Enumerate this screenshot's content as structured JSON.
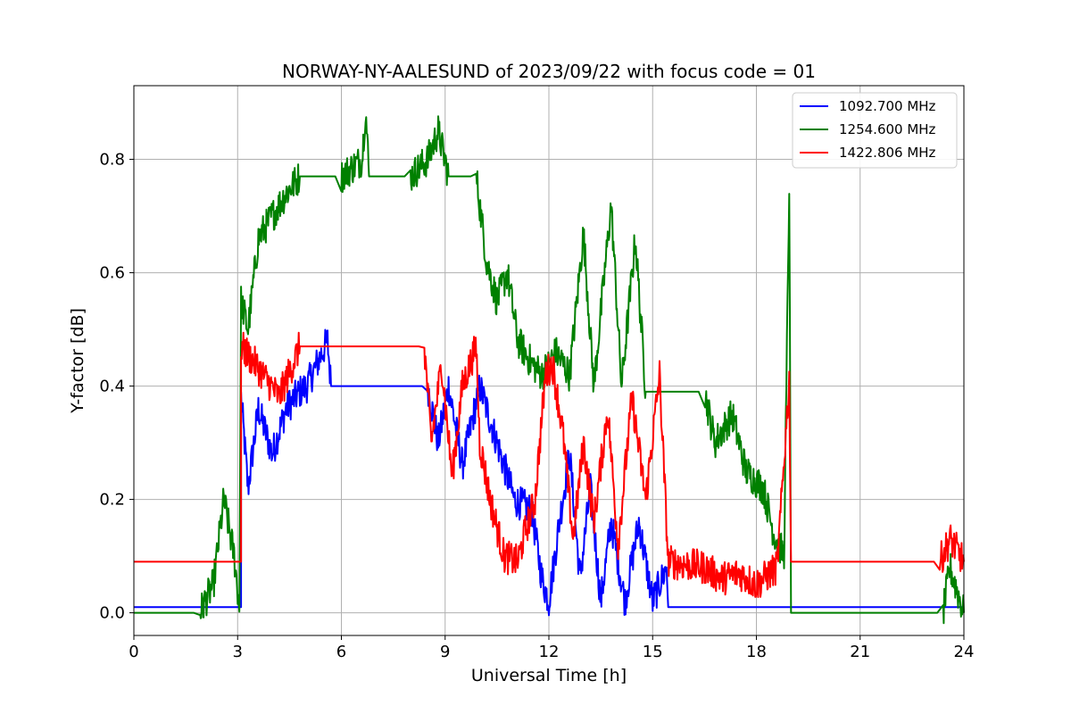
{
  "chart_data": {
    "type": "line",
    "title": "NORWAY-NY-AALESUND of 2023/09/22 with focus code = 01",
    "xlabel": "Universal Time [h]",
    "ylabel": "Y-factor [dB]",
    "xlim": [
      0,
      24
    ],
    "ylim": [
      -0.04,
      0.93
    ],
    "xticks": [
      0,
      3,
      6,
      9,
      12,
      15,
      18,
      21,
      24
    ],
    "yticks": [
      0.0,
      0.2,
      0.4,
      0.6,
      0.8
    ],
    "xtick_labels": [
      "0",
      "3",
      "6",
      "9",
      "12",
      "15",
      "18",
      "21",
      "24"
    ],
    "ytick_labels": [
      "0.0",
      "0.2",
      "0.4",
      "0.6",
      "0.8"
    ],
    "grid": true,
    "legend_position": "top-right",
    "colors": {
      "1092.700 MHz": "#0000ff",
      "1254.600 MHz": "#008000",
      "1422.806 MHz": "#ff0000"
    },
    "series": [
      {
        "name": "1092.700 MHz",
        "color": "#0000ff",
        "points": [
          [
            0,
            0.01
          ],
          [
            3.1,
            0.01
          ],
          [
            3.1,
            0.38
          ],
          [
            3.3,
            0.22
          ],
          [
            3.6,
            0.36
          ],
          [
            4.0,
            0.28
          ],
          [
            4.4,
            0.36
          ],
          [
            4.8,
            0.39
          ],
          [
            5.0,
            0.4
          ],
          [
            5.6,
            0.48
          ],
          [
            5.7,
            0.4
          ],
          [
            8.5,
            0.4
          ],
          [
            8.8,
            0.3
          ],
          [
            9.1,
            0.4
          ],
          [
            9.5,
            0.26
          ],
          [
            10.0,
            0.4
          ],
          [
            10.5,
            0.3
          ],
          [
            11.0,
            0.2
          ],
          [
            11.5,
            0.18
          ],
          [
            11.8,
            0.06
          ],
          [
            12.0,
            0.02
          ],
          [
            12.3,
            0.16
          ],
          [
            12.6,
            0.28
          ],
          [
            12.9,
            0.06
          ],
          [
            13.2,
            0.22
          ],
          [
            13.5,
            0.02
          ],
          [
            13.8,
            0.16
          ],
          [
            14.2,
            0.02
          ],
          [
            14.6,
            0.16
          ],
          [
            15.0,
            0.02
          ],
          [
            15.4,
            0.08
          ],
          [
            15.45,
            0.01
          ],
          [
            24,
            0.01
          ]
        ]
      },
      {
        "name": "1254.600 MHz",
        "color": "#008000",
        "points": [
          [
            0,
            0.0
          ],
          [
            1.9,
            0.0
          ],
          [
            2.3,
            0.05
          ],
          [
            2.6,
            0.2
          ],
          [
            2.9,
            0.1
          ],
          [
            3.05,
            0.01
          ],
          [
            3.1,
            0.55
          ],
          [
            3.3,
            0.5
          ],
          [
            3.6,
            0.66
          ],
          [
            4.0,
            0.7
          ],
          [
            4.4,
            0.74
          ],
          [
            4.8,
            0.77
          ],
          [
            5.3,
            0.77
          ],
          [
            6.0,
            0.77
          ],
          [
            6.6,
            0.8
          ],
          [
            6.7,
            0.89
          ],
          [
            6.8,
            0.77
          ],
          [
            8.0,
            0.77
          ],
          [
            8.5,
            0.8
          ],
          [
            8.8,
            0.85
          ],
          [
            9.1,
            0.77
          ],
          [
            9.9,
            0.77
          ],
          [
            10.2,
            0.62
          ],
          [
            10.5,
            0.55
          ],
          [
            10.8,
            0.6
          ],
          [
            11.1,
            0.48
          ],
          [
            11.5,
            0.44
          ],
          [
            11.8,
            0.42
          ],
          [
            12.2,
            0.46
          ],
          [
            12.6,
            0.42
          ],
          [
            13.0,
            0.67
          ],
          [
            13.3,
            0.4
          ],
          [
            13.8,
            0.72
          ],
          [
            14.1,
            0.4
          ],
          [
            14.5,
            0.66
          ],
          [
            14.8,
            0.39
          ],
          [
            16.5,
            0.39
          ],
          [
            16.8,
            0.3
          ],
          [
            17.3,
            0.35
          ],
          [
            17.7,
            0.25
          ],
          [
            18.2,
            0.22
          ],
          [
            18.5,
            0.14
          ],
          [
            18.8,
            0.1
          ],
          [
            18.95,
            0.76
          ],
          [
            19.0,
            0.0
          ],
          [
            23.4,
            0.0
          ],
          [
            23.6,
            0.08
          ],
          [
            24,
            0.0
          ]
        ]
      },
      {
        "name": "1422.806 MHz",
        "color": "#ff0000",
        "points": [
          [
            0,
            0.09
          ],
          [
            3.1,
            0.09
          ],
          [
            3.1,
            0.47
          ],
          [
            3.5,
            0.44
          ],
          [
            4.2,
            0.38
          ],
          [
            4.8,
            0.47
          ],
          [
            8.4,
            0.47
          ],
          [
            8.6,
            0.3
          ],
          [
            8.9,
            0.44
          ],
          [
            9.2,
            0.24
          ],
          [
            9.5,
            0.4
          ],
          [
            9.9,
            0.47
          ],
          [
            10.0,
            0.3
          ],
          [
            10.3,
            0.2
          ],
          [
            10.7,
            0.1
          ],
          [
            11.1,
            0.09
          ],
          [
            11.3,
            0.14
          ],
          [
            11.6,
            0.2
          ],
          [
            11.9,
            0.42
          ],
          [
            12.1,
            0.44
          ],
          [
            12.4,
            0.32
          ],
          [
            12.7,
            0.13
          ],
          [
            13.0,
            0.3
          ],
          [
            13.3,
            0.16
          ],
          [
            13.7,
            0.36
          ],
          [
            14.0,
            0.12
          ],
          [
            14.4,
            0.38
          ],
          [
            14.8,
            0.2
          ],
          [
            15.2,
            0.42
          ],
          [
            15.45,
            0.09
          ],
          [
            16.5,
            0.08
          ],
          [
            17.0,
            0.06
          ],
          [
            17.5,
            0.07
          ],
          [
            18.0,
            0.05
          ],
          [
            18.6,
            0.08
          ],
          [
            18.95,
            0.41
          ],
          [
            19.0,
            0.09
          ],
          [
            23.3,
            0.09
          ],
          [
            23.6,
            0.13
          ],
          [
            24,
            0.09
          ]
        ]
      }
    ]
  }
}
